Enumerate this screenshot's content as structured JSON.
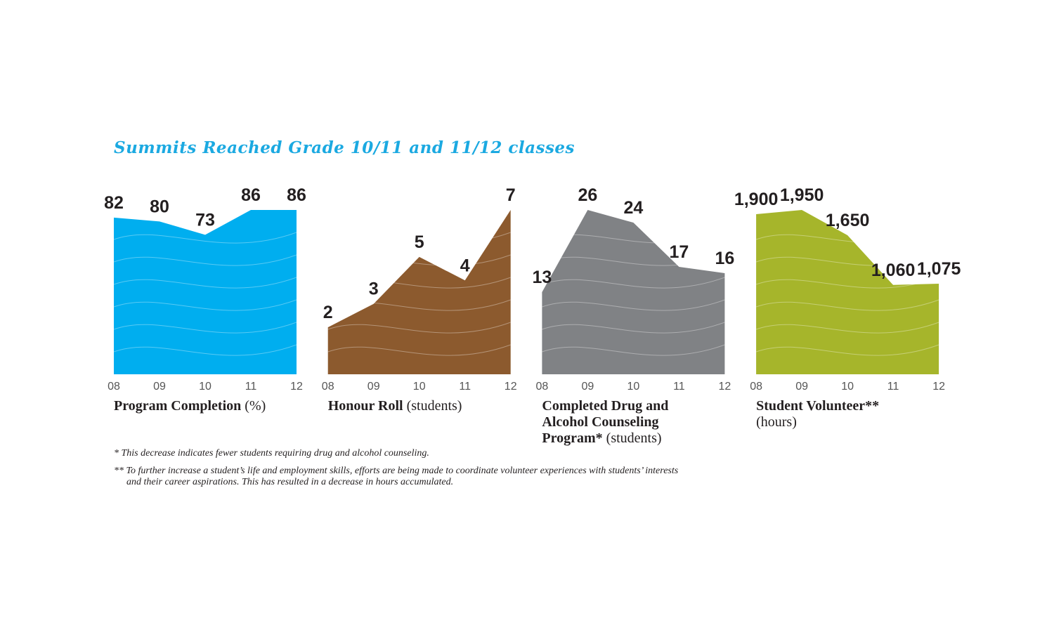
{
  "title": "Summits Reached Grade 10/11 and 11/12 classes",
  "chart_data": [
    {
      "type": "area",
      "label": "Program Completion",
      "unit": "(%)",
      "color": "#00aeef",
      "categories": [
        "08",
        "09",
        "10",
        "11",
        "12"
      ],
      "values": [
        82,
        80,
        73,
        86,
        86
      ],
      "ylim": [
        0,
        86
      ]
    },
    {
      "type": "area",
      "label": "Honour Roll",
      "unit": "(students)",
      "color": "#8c5a2e",
      "categories": [
        "08",
        "09",
        "10",
        "11",
        "12"
      ],
      "values": [
        2,
        3,
        5,
        4,
        7
      ],
      "ylim": [
        0,
        7
      ]
    },
    {
      "type": "area",
      "label": "Completed Drug and Alcohol Counseling Program*",
      "unit": "(students)",
      "color": "#808285",
      "categories": [
        "08",
        "09",
        "10",
        "11",
        "12"
      ],
      "values": [
        13,
        26,
        24,
        17,
        16
      ],
      "ylim": [
        0,
        26
      ]
    },
    {
      "type": "area",
      "label": "Student Volunteer**",
      "unit": "(hours)",
      "color": "#a6b52b",
      "categories": [
        "08",
        "09",
        "10",
        "11",
        "12"
      ],
      "values": [
        1900,
        1950,
        1650,
        1060,
        1075
      ],
      "value_labels": [
        "1,900",
        "1,950",
        "1,650",
        "1,060",
        "1,075"
      ],
      "ylim": [
        0,
        1950
      ]
    }
  ],
  "footnotes": [
    [
      "* This decrease indicates fewer students requiring drug and alcohol counseling."
    ],
    [
      "** To further increase a student’s life and employment skills, efforts are being made to coordinate volunteer experiences with students’ interests",
      "and their career aspirations. This has resulted in a decrease in hours accumulated."
    ]
  ]
}
